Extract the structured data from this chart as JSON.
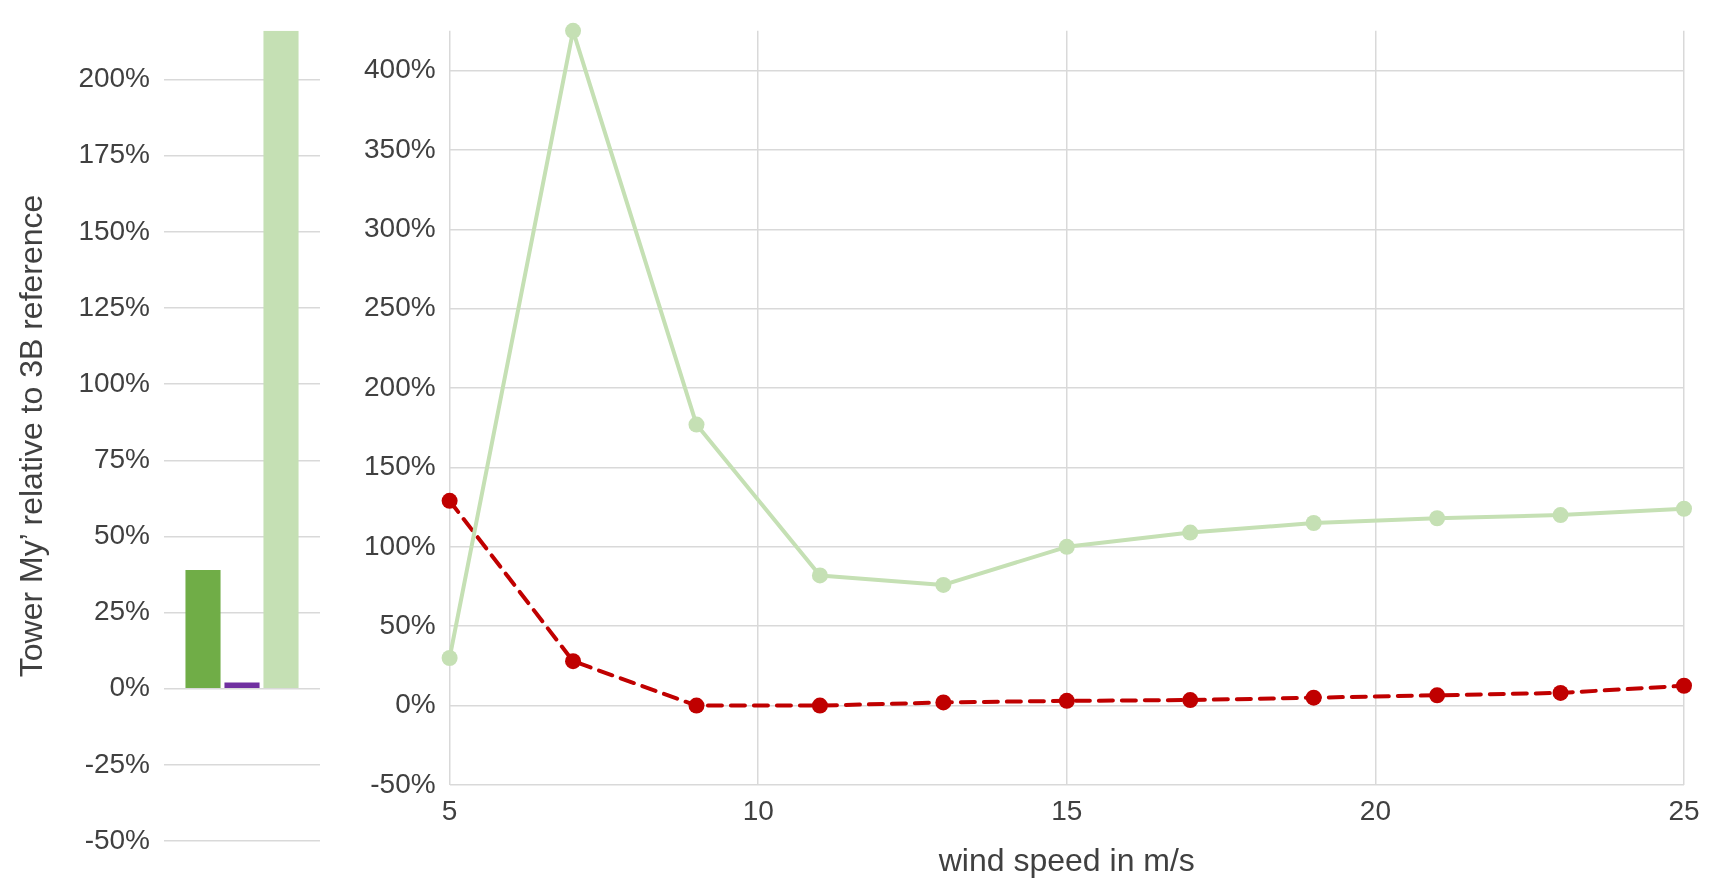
{
  "chart_data": [
    {
      "type": "bar",
      "ylabel": "Tower My’ relative to 3B reference",
      "categories": [
        null
      ],
      "series": [
        {
          "color": "#70ad47",
          "values": [
            39
          ]
        },
        {
          "color": "#7030a0",
          "values": [
            2
          ]
        },
        {
          "color": "#c5e0b4",
          "values": [
            216
          ]
        }
      ],
      "ylim": [
        -50,
        216
      ],
      "yticks": [
        {
          "value": -50,
          "label": "-50%"
        },
        {
          "value": -25,
          "label": "-25%"
        },
        {
          "value": 0,
          "label": "0%"
        },
        {
          "value": 25,
          "label": "25%"
        },
        {
          "value": 50,
          "label": "50%"
        },
        {
          "value": 75,
          "label": "75%"
        },
        {
          "value": 100,
          "label": "100%"
        },
        {
          "value": 125,
          "label": "125%"
        },
        {
          "value": 150,
          "label": "150%"
        },
        {
          "value": 175,
          "label": "175%"
        },
        {
          "value": 200,
          "label": "200%"
        }
      ],
      "grid": "y",
      "tick_labels": "y",
      "legend": false
    },
    {
      "type": "line",
      "xlabel": "wind speed in m/s",
      "x": [
        5,
        7,
        9,
        11,
        13,
        15,
        17,
        19,
        21,
        23,
        25
      ],
      "series": [
        {
          "color": "#c5e0b4",
          "values": [
            30,
            425,
            177,
            82,
            76,
            100,
            109,
            115,
            118,
            120,
            124
          ],
          "line_style": "solid"
        },
        {
          "color": "#c00000",
          "values": [
            129,
            28,
            0,
            0,
            2,
            3,
            3.5,
            5,
            6.5,
            8,
            12.5
          ],
          "line_style": "dashed"
        }
      ],
      "xlim": [
        5,
        25
      ],
      "xticks": [
        5,
        10,
        15,
        20,
        25
      ],
      "ylim": [
        -50,
        425
      ],
      "yticks": [
        {
          "value": -50,
          "label": "-50%"
        },
        {
          "value": 0,
          "label": "0%"
        },
        {
          "value": 50,
          "label": "50%"
        },
        {
          "value": 100,
          "label": "100%"
        },
        {
          "value": 150,
          "label": "150%"
        },
        {
          "value": 200,
          "label": "200%"
        },
        {
          "value": 250,
          "label": "250%"
        },
        {
          "value": 300,
          "label": "300%"
        },
        {
          "value": 350,
          "label": "350%"
        },
        {
          "value": 400,
          "label": "400%"
        }
      ],
      "grid": true,
      "marker": "circle",
      "legend": false
    }
  ]
}
